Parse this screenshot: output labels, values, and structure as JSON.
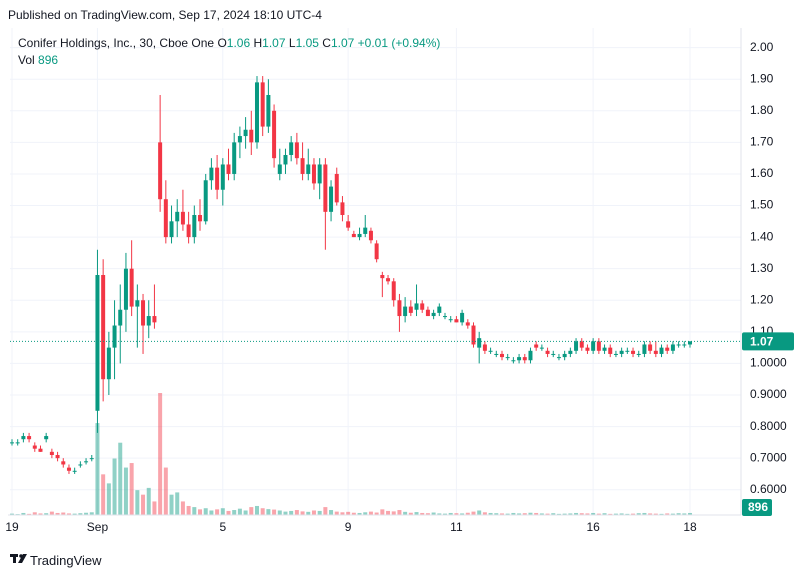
{
  "header": {
    "published": "Published on TradingView.com, Sep 17, 2024 18:10 UTC-4"
  },
  "legend": {
    "symbol": "Conifer Holdings, Inc., 30, Cboe One",
    "o_label": "O",
    "o": "1.06",
    "h_label": "H",
    "h": "1.07",
    "l_label": "L",
    "l": "1.05",
    "c_label": "C",
    "c": "1.07",
    "change": "+0.01 (+0.94%)",
    "vol_label": "Vol",
    "vol": "896"
  },
  "footer": {
    "brand": "TradingView"
  },
  "chart_data": {
    "type": "candlestick",
    "title": "Conifer Holdings, Inc., 30, Cboe One",
    "up_color": "#089981",
    "down_color": "#f23645",
    "grid": true,
    "open": [
      0.75,
      0.75,
      0.76,
      0.77,
      0.74,
      0.73,
      0.76,
      0.72,
      0.71,
      0.69,
      0.67,
      0.66,
      0.68,
      0.69,
      0.7,
      0.85,
      1.28,
      0.95,
      1.05,
      1.12,
      1.17,
      1.3,
      1.18,
      1.2,
      1.12,
      1.15,
      1.7,
      1.52,
      1.4,
      1.45,
      1.48,
      1.44,
      1.4,
      1.47,
      1.45,
      1.58,
      1.62,
      1.55,
      1.63,
      1.6,
      1.7,
      1.72,
      1.74,
      1.7,
      1.89,
      1.75,
      1.8,
      1.6,
      1.63,
      1.66,
      1.7,
      1.65,
      1.6,
      1.63,
      1.57,
      1.63,
      1.48,
      1.6,
      1.51,
      1.45,
      1.41,
      1.4,
      1.41,
      1.42,
      1.38,
      1.28,
      1.27,
      1.26,
      1.2,
      1.15,
      1.18,
      1.17,
      1.19,
      1.17,
      1.15,
      1.16,
      1.15,
      1.14,
      1.14,
      1.13,
      1.13,
      1.12,
      1.05,
      1.06,
      1.04,
      1.03,
      1.03,
      1.02,
      1.01,
      1.01,
      1.02,
      1.01,
      1.06,
      1.05,
      1.04,
      1.03,
      1.02,
      1.02,
      1.03,
      1.04,
      1.07,
      1.05,
      1.04,
      1.07,
      1.04,
      1.05,
      1.03,
      1.03,
      1.04,
      1.04,
      1.03,
      1.03,
      1.06,
      1.04,
      1.03,
      1.05,
      1.04,
      1.06,
      1.06,
      1.06
    ],
    "high": [
      0.76,
      0.76,
      0.78,
      0.78,
      0.75,
      0.74,
      0.78,
      0.73,
      0.72,
      0.7,
      0.68,
      0.67,
      0.69,
      0.7,
      0.71,
      1.36,
      1.33,
      1.1,
      1.2,
      1.25,
      1.35,
      1.39,
      1.25,
      1.22,
      1.2,
      1.25,
      1.85,
      1.58,
      1.5,
      1.52,
      1.55,
      1.48,
      1.5,
      1.52,
      1.6,
      1.65,
      1.66,
      1.65,
      1.68,
      1.73,
      1.75,
      1.78,
      1.8,
      1.91,
      1.91,
      1.9,
      1.82,
      1.68,
      1.68,
      1.72,
      1.73,
      1.7,
      1.68,
      1.65,
      1.65,
      1.65,
      1.58,
      1.62,
      1.53,
      1.47,
      1.42,
      1.43,
      1.47,
      1.43,
      1.39,
      1.29,
      1.28,
      1.27,
      1.22,
      1.21,
      1.2,
      1.25,
      1.2,
      1.18,
      1.17,
      1.19,
      1.16,
      1.15,
      1.15,
      1.17,
      1.14,
      1.13,
      1.1,
      1.07,
      1.05,
      1.04,
      1.04,
      1.03,
      1.02,
      1.03,
      1.03,
      1.05,
      1.07,
      1.06,
      1.05,
      1.04,
      1.03,
      1.04,
      1.05,
      1.08,
      1.08,
      1.06,
      1.08,
      1.08,
      1.06,
      1.06,
      1.04,
      1.05,
      1.05,
      1.05,
      1.04,
      1.07,
      1.07,
      1.07,
      1.06,
      1.06,
      1.07,
      1.07,
      1.07,
      1.07
    ],
    "low": [
      0.74,
      0.74,
      0.75,
      0.75,
      0.72,
      0.72,
      0.75,
      0.7,
      0.69,
      0.67,
      0.65,
      0.65,
      0.67,
      0.68,
      0.69,
      0.78,
      0.88,
      0.9,
      0.95,
      1.0,
      1.1,
      1.15,
      1.05,
      1.03,
      1.08,
      1.11,
      1.48,
      1.38,
      1.38,
      1.4,
      1.42,
      1.38,
      1.38,
      1.42,
      1.44,
      1.55,
      1.52,
      1.5,
      1.58,
      1.58,
      1.65,
      1.68,
      1.66,
      1.68,
      1.72,
      1.73,
      1.62,
      1.58,
      1.6,
      1.64,
      1.63,
      1.58,
      1.58,
      1.55,
      1.52,
      1.36,
      1.45,
      1.5,
      1.45,
      1.42,
      1.4,
      1.39,
      1.4,
      1.38,
      1.32,
      1.21,
      1.25,
      1.18,
      1.1,
      1.13,
      1.15,
      1.15,
      1.16,
      1.15,
      1.14,
      1.15,
      1.14,
      1.13,
      1.13,
      1.12,
      1.11,
      1.05,
      1.0,
      1.03,
      1.03,
      1.02,
      1.01,
      1.01,
      1.0,
      1.0,
      1.0,
      1.0,
      1.04,
      1.04,
      1.02,
      1.02,
      1.01,
      1.01,
      1.02,
      1.03,
      1.04,
      1.03,
      1.03,
      1.03,
      1.03,
      1.02,
      1.02,
      1.02,
      1.03,
      1.02,
      1.02,
      1.02,
      1.03,
      1.02,
      1.02,
      1.03,
      1.03,
      1.05,
      1.05,
      1.05
    ],
    "close": [
      0.75,
      0.75,
      0.77,
      0.76,
      0.73,
      0.72,
      0.77,
      0.71,
      0.7,
      0.68,
      0.66,
      0.66,
      0.68,
      0.69,
      0.7,
      1.28,
      0.95,
      1.05,
      1.12,
      1.17,
      1.3,
      1.18,
      1.2,
      1.12,
      1.15,
      1.13,
      1.52,
      1.4,
      1.45,
      1.48,
      1.44,
      1.4,
      1.47,
      1.45,
      1.58,
      1.62,
      1.55,
      1.63,
      1.6,
      1.7,
      1.72,
      1.74,
      1.7,
      1.89,
      1.75,
      1.85,
      1.65,
      1.63,
      1.66,
      1.7,
      1.65,
      1.6,
      1.63,
      1.57,
      1.63,
      1.48,
      1.56,
      1.51,
      1.47,
      1.43,
      1.4,
      1.41,
      1.43,
      1.39,
      1.33,
      1.27,
      1.26,
      1.2,
      1.15,
      1.18,
      1.16,
      1.19,
      1.17,
      1.15,
      1.16,
      1.18,
      1.15,
      1.14,
      1.13,
      1.16,
      1.12,
      1.06,
      1.08,
      1.04,
      1.04,
      1.03,
      1.02,
      1.02,
      1.01,
      1.02,
      1.01,
      1.04,
      1.05,
      1.05,
      1.03,
      1.03,
      1.02,
      1.03,
      1.04,
      1.07,
      1.05,
      1.04,
      1.07,
      1.04,
      1.05,
      1.03,
      1.03,
      1.04,
      1.04,
      1.03,
      1.03,
      1.06,
      1.04,
      1.03,
      1.05,
      1.04,
      1.06,
      1.06,
      1.06,
      1.07
    ],
    "volume": [
      600,
      400,
      900,
      500,
      1200,
      700,
      800,
      1500,
      900,
      1100,
      700,
      600,
      800,
      1000,
      1200,
      40700,
      18000,
      14000,
      25000,
      32000,
      21000,
      23000,
      11000,
      9000,
      12000,
      6000,
      54000,
      21000,
      9000,
      10000,
      6000,
      4000,
      3500,
      2500,
      3000,
      2000,
      2500,
      3000,
      1800,
      2200,
      2800,
      2000,
      3500,
      4000,
      3000,
      2600,
      2400,
      2000,
      1500,
      1800,
      2200,
      1600,
      1400,
      2000,
      1800,
      3500,
      2200,
      1500,
      1200,
      1400,
      1000,
      900,
      1200,
      1500,
      1100,
      2500,
      1800,
      1600,
      2200,
      1400,
      1000,
      1300,
      900,
      800,
      1100,
      700,
      600,
      900,
      800,
      700,
      1000,
      1500,
      2000,
      1200,
      900,
      800,
      700,
      600,
      900,
      700,
      800,
      1000,
      900,
      700,
      600,
      800,
      500,
      600,
      700,
      900,
      800,
      700,
      900,
      600,
      800,
      500,
      600,
      700,
      500,
      600,
      800,
      900,
      700,
      600,
      500,
      700,
      600,
      800,
      700,
      896
    ],
    "ylim": [
      0.52,
      2.04
    ],
    "yticks": [
      {
        "value": 2.0,
        "label": "2.00"
      },
      {
        "value": 1.9,
        "label": "1.90"
      },
      {
        "value": 1.8,
        "label": "1.80"
      },
      {
        "value": 1.7,
        "label": "1.70"
      },
      {
        "value": 1.6,
        "label": "1.60"
      },
      {
        "value": 1.5,
        "label": "1.50"
      },
      {
        "value": 1.4,
        "label": "1.40"
      },
      {
        "value": 1.3,
        "label": "1.30"
      },
      {
        "value": 1.2,
        "label": "1.20"
      },
      {
        "value": 1.1,
        "label": "1.10"
      },
      {
        "value": 1.0,
        "label": "1.0000"
      },
      {
        "value": 0.9,
        "label": "0.9000"
      },
      {
        "value": 0.8,
        "label": "0.8000"
      },
      {
        "value": 0.7,
        "label": "0.7000"
      },
      {
        "value": 0.6,
        "label": "0.6000"
      }
    ],
    "xlim": [
      -0.35,
      127.95
    ],
    "xticks": [
      {
        "value": 0,
        "label": "19"
      },
      {
        "value": 15,
        "label": "Sep"
      },
      {
        "value": 37,
        "label": "5"
      },
      {
        "value": 59,
        "label": "9"
      },
      {
        "value": 78,
        "label": "11"
      },
      {
        "value": 102,
        "label": "16"
      },
      {
        "value": 119,
        "label": "18"
      }
    ]
  }
}
